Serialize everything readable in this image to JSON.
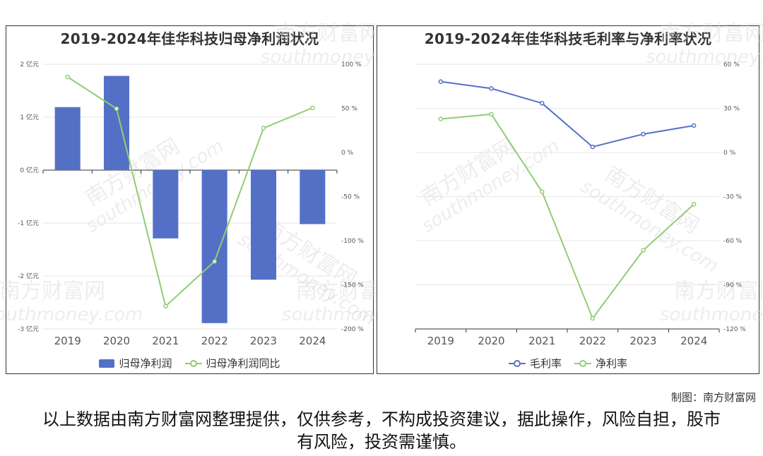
{
  "chart_data": [
    {
      "type": "bar+line",
      "title": "2019-2024年佳华科技归母净利润状况",
      "categories": [
        "2019",
        "2020",
        "2021",
        "2022",
        "2023",
        "2024"
      ],
      "series": [
        {
          "name": "归母净利润",
          "type": "bar",
          "axis": "left",
          "color": "#5470c6",
          "values": [
            1.19,
            1.78,
            -1.29,
            -2.89,
            -2.07,
            -1.02
          ]
        },
        {
          "name": "归母净利润同比",
          "type": "line",
          "axis": "right",
          "color": "#91cc75",
          "values": [
            85.6,
            49.6,
            -174.3,
            -123.5,
            27.6,
            50.6
          ]
        }
      ],
      "y_left": {
        "min": -3,
        "max": 2,
        "step": 1,
        "suffix": " 亿元",
        "ticks": [
          "2 亿元",
          "1 亿元",
          "0 亿元",
          "-1 亿元",
          "-2 亿元",
          "-3 亿元"
        ]
      },
      "y_right": {
        "min": -200,
        "max": 100,
        "step": 50,
        "suffix": " %",
        "ticks": [
          "100 %",
          "50 %",
          "0 %",
          "-50 %",
          "-100 %",
          "-150 %",
          "-200 %"
        ]
      },
      "grid": true,
      "legend": "bottom-center"
    },
    {
      "type": "line",
      "title": "2019-2024年佳华科技毛利率与净利率状况",
      "categories": [
        "2019",
        "2020",
        "2021",
        "2022",
        "2023",
        "2024"
      ],
      "series": [
        {
          "name": "毛利率",
          "color": "#5470c6",
          "values": [
            48.2,
            43.5,
            33.5,
            3.8,
            12.5,
            18.3
          ]
        },
        {
          "name": "净利率",
          "color": "#91cc75",
          "values": [
            22.8,
            26.0,
            -26.7,
            -112.8,
            -66.5,
            -35.2
          ]
        }
      ],
      "y_right": {
        "min": -120,
        "max": 60,
        "step": 30,
        "suffix": " %",
        "ticks": [
          "60 %",
          "30 %",
          "0 %",
          "-30 %",
          "-60 %",
          "-90 %",
          "-120 %"
        ]
      },
      "grid": true,
      "legend": "bottom-center"
    }
  ],
  "watermark": {
    "cn": "南方财富网",
    "en": "southmoney.com"
  },
  "credit": "制图：南方财富网",
  "disclaimer": "以上数据由南方财富网整理提供，仅供参考，不构成投资建议，据此操作，风险自担，股市有风险，投资需谨慎。"
}
